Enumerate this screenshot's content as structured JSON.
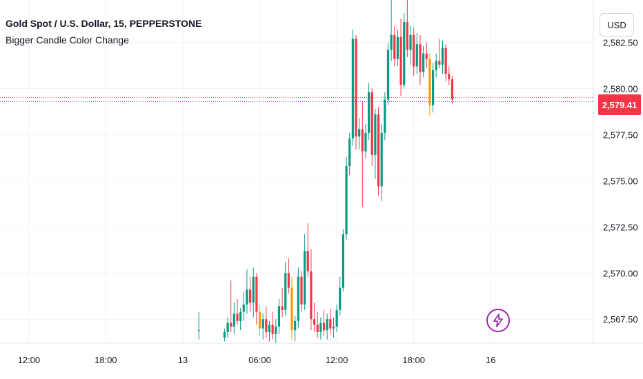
{
  "header": {
    "symbol_title": "Gold Spot / U.S. Dollar, 15, PEPPERSTONE",
    "indicator_name": "Bigger Candle Color Change"
  },
  "currency_button": {
    "label": "USD"
  },
  "last_price": {
    "label": "2,579.41",
    "value": 2579.41
  },
  "colors": {
    "up": "#089981",
    "down": "#f23645",
    "highlight": "#ff9800",
    "grid": "#f0f3fa",
    "bolt": "#9c27b0"
  },
  "chart_data": {
    "type": "candlestick",
    "y_axis": {
      "ticks": [
        {
          "value": 2567.5,
          "label": "2,567.50"
        },
        {
          "value": 2570.0,
          "label": "2,570.00"
        },
        {
          "value": 2572.5,
          "label": "2,572.50"
        },
        {
          "value": 2575.0,
          "label": "2,575.00"
        },
        {
          "value": 2577.5,
          "label": "2,577.50"
        },
        {
          "value": 2580.0,
          "label": "2,580.00"
        },
        {
          "value": 2582.5,
          "label": "2,582.50"
        }
      ],
      "range": [
        2566.2,
        2584.8
      ]
    },
    "x_axis": {
      "ticks": [
        {
          "t": 0,
          "label": "12:00"
        },
        {
          "t": 24,
          "label": "18:00"
        },
        {
          "t": 48,
          "label": "13"
        },
        {
          "t": 72,
          "label": "06:00"
        },
        {
          "t": 96,
          "label": "12:00"
        },
        {
          "t": 120,
          "label": "18:00"
        },
        {
          "t": 144,
          "label": "16"
        }
      ],
      "range": [
        -9,
        176
      ]
    },
    "candles": [
      {
        "t": 53,
        "o": 2566.9,
        "h": 2567.9,
        "l": 2566.4,
        "c": 2566.9,
        "color": "green"
      },
      {
        "t": 61,
        "o": 2566.5,
        "h": 2567.0,
        "l": 2566.3,
        "c": 2566.8,
        "color": "green"
      },
      {
        "t": 62,
        "o": 2566.8,
        "h": 2567.6,
        "l": 2566.5,
        "c": 2567.3,
        "color": "green"
      },
      {
        "t": 63,
        "o": 2567.3,
        "h": 2569.6,
        "l": 2566.8,
        "c": 2567.1,
        "color": "red"
      },
      {
        "t": 64,
        "o": 2567.1,
        "h": 2568.4,
        "l": 2566.7,
        "c": 2567.8,
        "color": "green"
      },
      {
        "t": 65,
        "o": 2567.8,
        "h": 2568.6,
        "l": 2567.2,
        "c": 2567.4,
        "color": "red"
      },
      {
        "t": 66,
        "o": 2567.4,
        "h": 2568.1,
        "l": 2566.9,
        "c": 2567.9,
        "color": "green"
      },
      {
        "t": 67,
        "o": 2567.9,
        "h": 2569.0,
        "l": 2567.4,
        "c": 2568.3,
        "color": "green"
      },
      {
        "t": 68,
        "o": 2568.3,
        "h": 2570.2,
        "l": 2567.8,
        "c": 2569.1,
        "color": "green"
      },
      {
        "t": 69,
        "o": 2569.1,
        "h": 2569.8,
        "l": 2567.9,
        "c": 2568.4,
        "color": "red"
      },
      {
        "t": 70,
        "o": 2568.4,
        "h": 2570.3,
        "l": 2567.6,
        "c": 2569.8,
        "color": "green"
      },
      {
        "t": 71,
        "o": 2569.8,
        "h": 2570.0,
        "l": 2567.2,
        "c": 2567.9,
        "color": "red"
      },
      {
        "t": 72,
        "o": 2567.9,
        "h": 2568.3,
        "l": 2566.6,
        "c": 2567.0,
        "color": "orange"
      },
      {
        "t": 73,
        "o": 2567.0,
        "h": 2567.8,
        "l": 2566.4,
        "c": 2567.5,
        "color": "green"
      },
      {
        "t": 74,
        "o": 2567.5,
        "h": 2568.2,
        "l": 2566.5,
        "c": 2566.8,
        "color": "red"
      },
      {
        "t": 75,
        "o": 2566.8,
        "h": 2567.4,
        "l": 2566.3,
        "c": 2567.2,
        "color": "green"
      },
      {
        "t": 76,
        "o": 2567.2,
        "h": 2567.9,
        "l": 2566.4,
        "c": 2566.7,
        "color": "red"
      },
      {
        "t": 77,
        "o": 2566.7,
        "h": 2567.5,
        "l": 2566.2,
        "c": 2567.1,
        "color": "green"
      },
      {
        "t": 78,
        "o": 2567.1,
        "h": 2568.6,
        "l": 2566.7,
        "c": 2568.2,
        "color": "green"
      },
      {
        "t": 79,
        "o": 2568.2,
        "h": 2569.2,
        "l": 2567.6,
        "c": 2568.0,
        "color": "red"
      },
      {
        "t": 80,
        "o": 2568.0,
        "h": 2570.6,
        "l": 2567.7,
        "c": 2570.0,
        "color": "green"
      },
      {
        "t": 81,
        "o": 2570.0,
        "h": 2570.8,
        "l": 2568.9,
        "c": 2569.2,
        "color": "red"
      },
      {
        "t": 82,
        "o": 2569.2,
        "h": 2569.8,
        "l": 2566.4,
        "c": 2566.9,
        "color": "orange"
      },
      {
        "t": 83,
        "o": 2566.9,
        "h": 2567.7,
        "l": 2566.3,
        "c": 2567.4,
        "color": "green"
      },
      {
        "t": 84,
        "o": 2567.4,
        "h": 2570.3,
        "l": 2567.0,
        "c": 2569.8,
        "color": "green"
      },
      {
        "t": 85,
        "o": 2569.8,
        "h": 2570.1,
        "l": 2567.9,
        "c": 2568.3,
        "color": "red"
      },
      {
        "t": 86,
        "o": 2568.3,
        "h": 2572.1,
        "l": 2568.0,
        "c": 2571.2,
        "color": "green"
      },
      {
        "t": 87,
        "o": 2571.2,
        "h": 2572.7,
        "l": 2569.8,
        "c": 2570.1,
        "color": "red"
      },
      {
        "t": 88,
        "o": 2570.1,
        "h": 2571.3,
        "l": 2566.9,
        "c": 2567.5,
        "color": "red"
      },
      {
        "t": 89,
        "o": 2567.5,
        "h": 2568.4,
        "l": 2566.8,
        "c": 2567.2,
        "color": "red"
      },
      {
        "t": 90,
        "o": 2567.2,
        "h": 2567.9,
        "l": 2566.5,
        "c": 2566.8,
        "color": "red"
      },
      {
        "t": 91,
        "o": 2566.8,
        "h": 2567.6,
        "l": 2566.4,
        "c": 2567.3,
        "color": "green"
      },
      {
        "t": 92,
        "o": 2567.3,
        "h": 2568.0,
        "l": 2566.6,
        "c": 2566.9,
        "color": "red"
      },
      {
        "t": 93,
        "o": 2566.9,
        "h": 2567.8,
        "l": 2566.4,
        "c": 2567.5,
        "color": "green"
      },
      {
        "t": 94,
        "o": 2567.5,
        "h": 2568.1,
        "l": 2566.7,
        "c": 2567.0,
        "color": "red"
      },
      {
        "t": 95,
        "o": 2567.0,
        "h": 2567.6,
        "l": 2566.5,
        "c": 2567.1,
        "color": "green"
      },
      {
        "t": 96,
        "o": 2567.1,
        "h": 2568.3,
        "l": 2566.8,
        "c": 2568.0,
        "color": "green"
      },
      {
        "t": 97,
        "o": 2568.0,
        "h": 2569.8,
        "l": 2567.7,
        "c": 2569.2,
        "color": "green"
      },
      {
        "t": 98,
        "o": 2569.2,
        "h": 2572.4,
        "l": 2569.0,
        "c": 2572.1,
        "color": "green"
      },
      {
        "t": 99,
        "o": 2572.1,
        "h": 2576.3,
        "l": 2571.8,
        "c": 2575.8,
        "color": "green"
      },
      {
        "t": 100,
        "o": 2575.8,
        "h": 2577.6,
        "l": 2575.3,
        "c": 2577.3,
        "color": "green"
      },
      {
        "t": 101,
        "o": 2577.3,
        "h": 2583.2,
        "l": 2576.9,
        "c": 2582.7,
        "color": "green"
      },
      {
        "t": 102,
        "o": 2582.7,
        "h": 2582.9,
        "l": 2576.7,
        "c": 2577.4,
        "color": "red"
      },
      {
        "t": 103,
        "o": 2577.4,
        "h": 2578.4,
        "l": 2576.7,
        "c": 2577.8,
        "color": "green"
      },
      {
        "t": 104,
        "o": 2577.8,
        "h": 2579.3,
        "l": 2573.6,
        "c": 2576.6,
        "color": "red"
      },
      {
        "t": 105,
        "o": 2576.6,
        "h": 2578.1,
        "l": 2576.2,
        "c": 2577.6,
        "color": "green"
      },
      {
        "t": 106,
        "o": 2577.6,
        "h": 2580.3,
        "l": 2577.2,
        "c": 2579.8,
        "color": "green"
      },
      {
        "t": 107,
        "o": 2579.8,
        "h": 2580.0,
        "l": 2575.8,
        "c": 2576.4,
        "color": "red"
      },
      {
        "t": 108,
        "o": 2576.4,
        "h": 2578.9,
        "l": 2575.1,
        "c": 2578.6,
        "color": "green"
      },
      {
        "t": 109,
        "o": 2578.6,
        "h": 2579.0,
        "l": 2574.2,
        "c": 2574.7,
        "color": "red"
      },
      {
        "t": 110,
        "o": 2574.7,
        "h": 2578.1,
        "l": 2573.9,
        "c": 2577.6,
        "color": "green"
      },
      {
        "t": 111,
        "o": 2577.6,
        "h": 2579.8,
        "l": 2577.2,
        "c": 2579.4,
        "color": "green"
      },
      {
        "t": 112,
        "o": 2579.4,
        "h": 2582.5,
        "l": 2579.1,
        "c": 2582.1,
        "color": "green"
      },
      {
        "t": 113,
        "o": 2582.1,
        "h": 2584.8,
        "l": 2581.5,
        "c": 2582.9,
        "color": "green"
      },
      {
        "t": 114,
        "o": 2582.9,
        "h": 2583.4,
        "l": 2581.2,
        "c": 2581.6,
        "color": "red"
      },
      {
        "t": 115,
        "o": 2581.6,
        "h": 2583.2,
        "l": 2581.2,
        "c": 2582.8,
        "color": "green"
      },
      {
        "t": 116,
        "o": 2582.8,
        "h": 2583.8,
        "l": 2579.6,
        "c": 2580.2,
        "color": "red"
      },
      {
        "t": 117,
        "o": 2580.2,
        "h": 2584.1,
        "l": 2580.0,
        "c": 2583.6,
        "color": "green"
      },
      {
        "t": 118,
        "o": 2583.6,
        "h": 2584.8,
        "l": 2581.7,
        "c": 2582.1,
        "color": "red"
      },
      {
        "t": 119,
        "o": 2582.1,
        "h": 2583.4,
        "l": 2581.3,
        "c": 2582.9,
        "color": "green"
      },
      {
        "t": 120,
        "o": 2582.9,
        "h": 2583.3,
        "l": 2580.7,
        "c": 2581.2,
        "color": "red"
      },
      {
        "t": 121,
        "o": 2581.2,
        "h": 2583.0,
        "l": 2580.8,
        "c": 2582.4,
        "color": "green"
      },
      {
        "t": 122,
        "o": 2582.4,
        "h": 2582.9,
        "l": 2580.2,
        "c": 2580.9,
        "color": "red"
      },
      {
        "t": 123,
        "o": 2580.9,
        "h": 2582.3,
        "l": 2580.6,
        "c": 2581.9,
        "color": "green"
      },
      {
        "t": 124,
        "o": 2581.9,
        "h": 2582.5,
        "l": 2581.1,
        "c": 2581.6,
        "color": "red"
      },
      {
        "t": 125,
        "o": 2581.6,
        "h": 2581.9,
        "l": 2578.5,
        "c": 2579.1,
        "color": "orange"
      },
      {
        "t": 126,
        "o": 2579.1,
        "h": 2581.4,
        "l": 2578.7,
        "c": 2581.0,
        "color": "green"
      },
      {
        "t": 127,
        "o": 2581.0,
        "h": 2581.9,
        "l": 2580.6,
        "c": 2581.5,
        "color": "green"
      },
      {
        "t": 128,
        "o": 2581.5,
        "h": 2582.7,
        "l": 2581.1,
        "c": 2581.3,
        "color": "red"
      },
      {
        "t": 129,
        "o": 2581.3,
        "h": 2582.6,
        "l": 2580.8,
        "c": 2582.2,
        "color": "green"
      },
      {
        "t": 130,
        "o": 2582.2,
        "h": 2582.4,
        "l": 2580.4,
        "c": 2580.8,
        "color": "red"
      },
      {
        "t": 131,
        "o": 2580.8,
        "h": 2581.2,
        "l": 2580.2,
        "c": 2580.5,
        "color": "red"
      },
      {
        "t": 132,
        "o": 2580.5,
        "h": 2580.7,
        "l": 2579.2,
        "c": 2579.41,
        "color": "red"
      }
    ]
  },
  "flash_button": {
    "icon": "lightning-icon"
  }
}
